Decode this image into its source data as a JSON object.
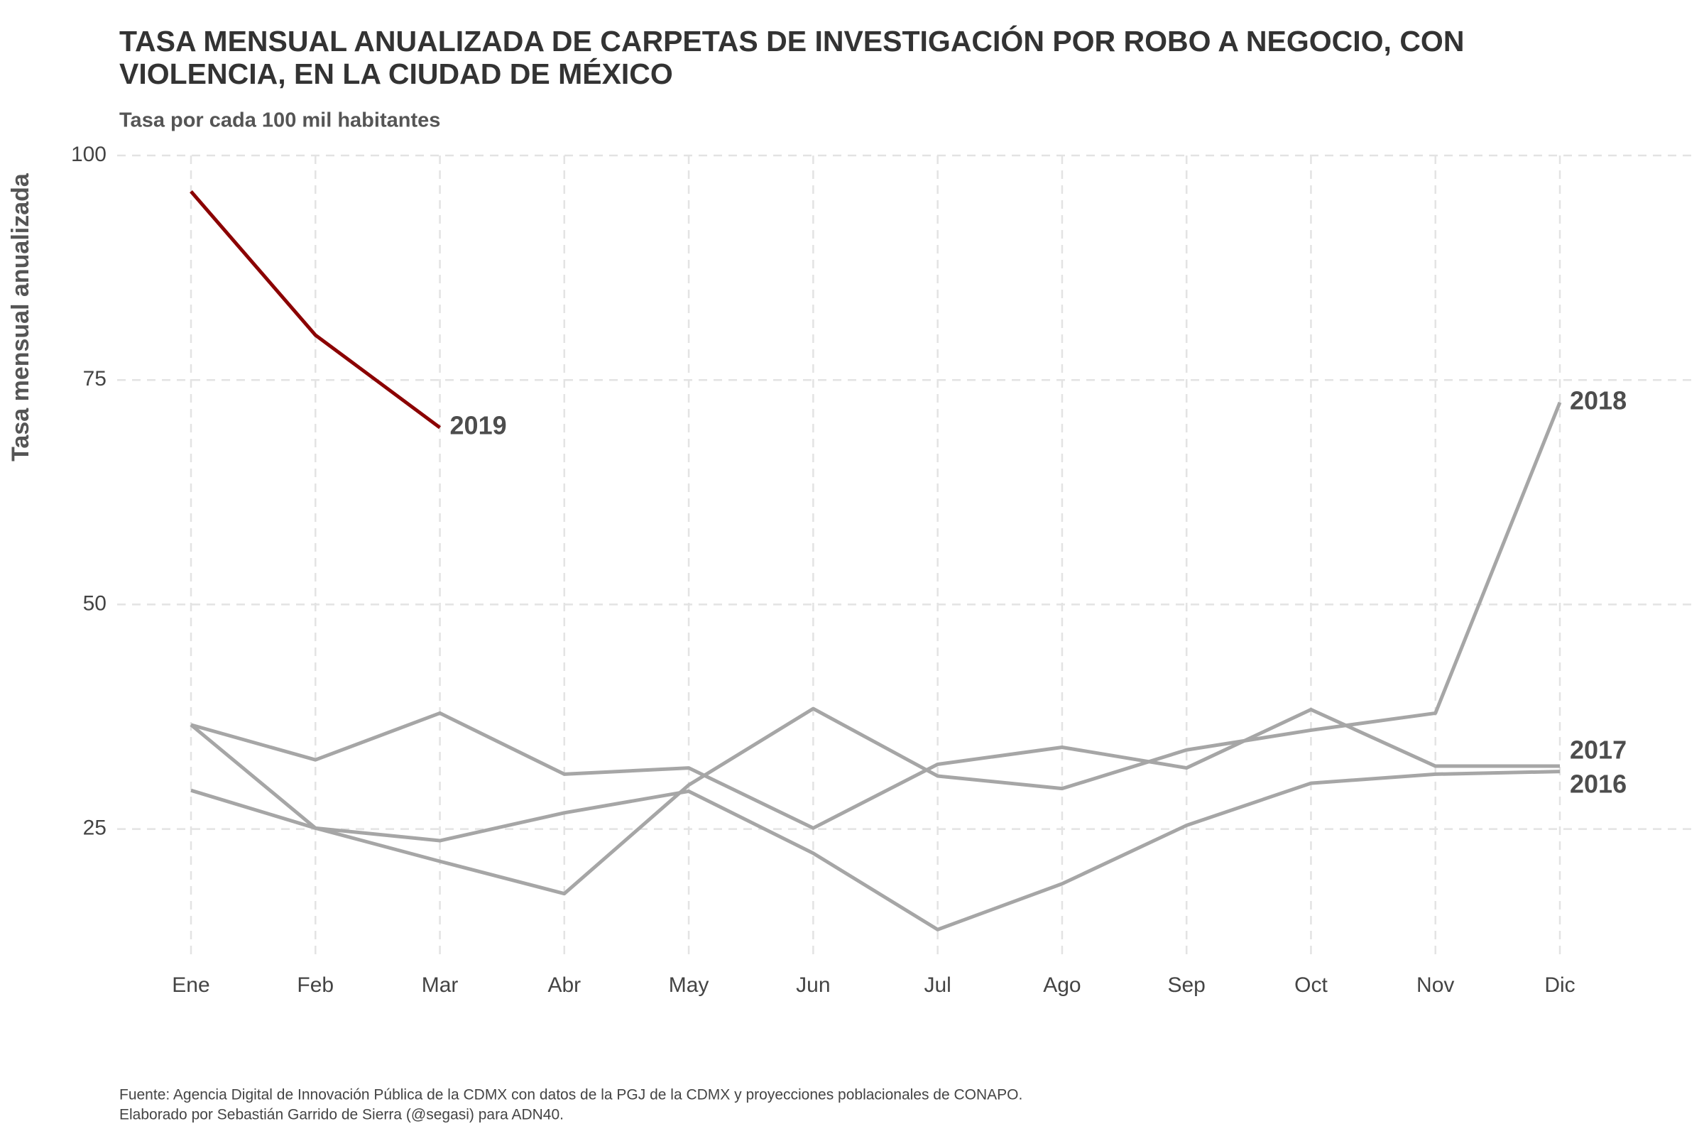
{
  "chart_data": {
    "type": "line",
    "title": [
      "TASA MENSUAL ANUALIZADA DE CARPETAS DE INVESTIGACIÓN POR ROBO A NEGOCIO, CON",
      "VIOLENCIA, EN LA CIUDAD DE MÉXICO"
    ],
    "subtitle": "Tasa por cada 100 mil habitantes",
    "y_label": "Tasa mensual anualizada",
    "caption": [
      "Fuente: Agencia Digital de Innovación Pública de la CDMX con datos de la PGJ de la CDMX y proyecciones poblacionales de CONAPO.",
      "Elaborado por Sebastián Garrido de Sierra (@segasi) para ADN40."
    ],
    "categories": [
      "Ene",
      "Feb",
      "Mar",
      "Abr",
      "May",
      "Jun",
      "Jul",
      "Ago",
      "Sep",
      "Oct",
      "Nov",
      "Dic"
    ],
    "series": [
      {
        "name": "2016",
        "color": "#a6a6a6",
        "values": [
          36.6,
          25.1,
          23.7,
          26.8,
          29.2,
          22.3,
          13.8,
          18.9,
          25.4,
          30.1,
          31.1,
          31.4
        ]
      },
      {
        "name": "2017",
        "color": "#a6a6a6",
        "values": [
          36.6,
          32.7,
          37.9,
          31.1,
          31.8,
          25.1,
          32.2,
          34.1,
          31.8,
          38.3,
          32.0,
          32.0
        ]
      },
      {
        "name": "2018",
        "color": "#a6a6a6",
        "values": [
          29.3,
          25.1,
          21.4,
          17.8,
          29.9,
          38.4,
          30.9,
          29.5,
          33.8,
          36.0,
          37.9,
          72.5
        ]
      },
      {
        "name": "2019",
        "color": "#8b0000",
        "values": [
          96.0,
          80.0,
          69.7,
          null,
          null,
          null,
          null,
          null,
          null,
          null,
          null,
          null
        ]
      }
    ],
    "ylim": [
      12,
      100
    ],
    "yticks": [
      25,
      50,
      75,
      100
    ],
    "grid": true
  }
}
